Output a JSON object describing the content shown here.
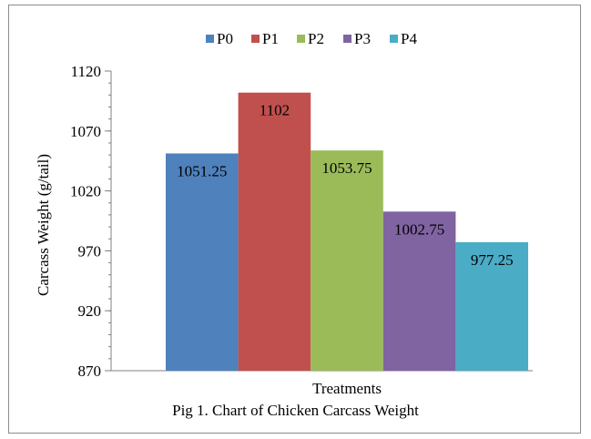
{
  "caption": "Pig 1. Chart of Chicken Carcass Weight",
  "chart_data": {
    "type": "bar",
    "title": "",
    "xlabel": "Treatments",
    "ylabel": "Carcass Weight (g/tail)",
    "ylim": [
      870,
      1120
    ],
    "yticks": [
      870,
      920,
      970,
      1020,
      1070,
      1120
    ],
    "grid": false,
    "legend_position": "top",
    "categories": [
      "Treatments"
    ],
    "series": [
      {
        "name": "P0",
        "values": [
          1051.25
        ],
        "label": "1051.25",
        "color": "#4f81bd"
      },
      {
        "name": "P1",
        "values": [
          1102
        ],
        "label": "1102",
        "color": "#c0504d"
      },
      {
        "name": "P2",
        "values": [
          1053.75
        ],
        "label": "1053.75",
        "color": "#9bbb59"
      },
      {
        "name": "P3",
        "values": [
          1002.75
        ],
        "label": "1002.75",
        "color": "#8064a2"
      },
      {
        "name": "P4",
        "values": [
          977.25
        ],
        "label": "977.25",
        "color": "#4bacc6"
      }
    ]
  }
}
